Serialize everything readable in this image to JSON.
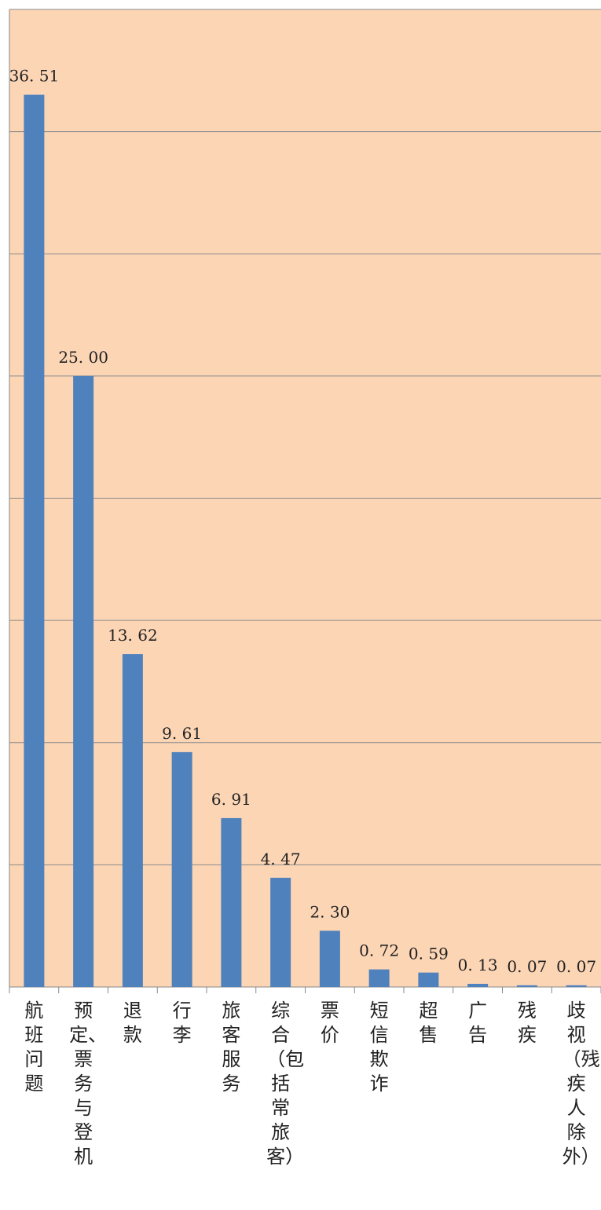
{
  "chart_data": {
    "type": "bar",
    "categories": [
      "航班问题",
      "预定、票务与登机",
      "退款",
      "行李",
      "旅客服务",
      "综合（包括常旅客）",
      "票价",
      "短信欺诈",
      "超售",
      "广告",
      "残疾",
      "歧视（残疾人除外）"
    ],
    "values": [
      36.51,
      25.0,
      13.62,
      9.61,
      6.91,
      4.47,
      2.3,
      0.72,
      0.59,
      0.13,
      0.07,
      0.07
    ],
    "value_labels": [
      "36. 51",
      "25. 00",
      "13. 62",
      "9. 61",
      "6. 91",
      "4. 47",
      "2. 30",
      "0. 72",
      "0. 59",
      "0. 13",
      "0. 07",
      "0. 07"
    ],
    "ylim": [
      0,
      40
    ],
    "gridlines": [
      5,
      10,
      15,
      20,
      25,
      30,
      35,
      40
    ],
    "grid": true,
    "legend": "none",
    "title": "",
    "xlabel": "",
    "ylabel": ""
  },
  "colors": {
    "plot_background": "#fcd5b5",
    "bar": "#4f81bd",
    "grid": "#8a8a8a",
    "text": "#222222"
  }
}
